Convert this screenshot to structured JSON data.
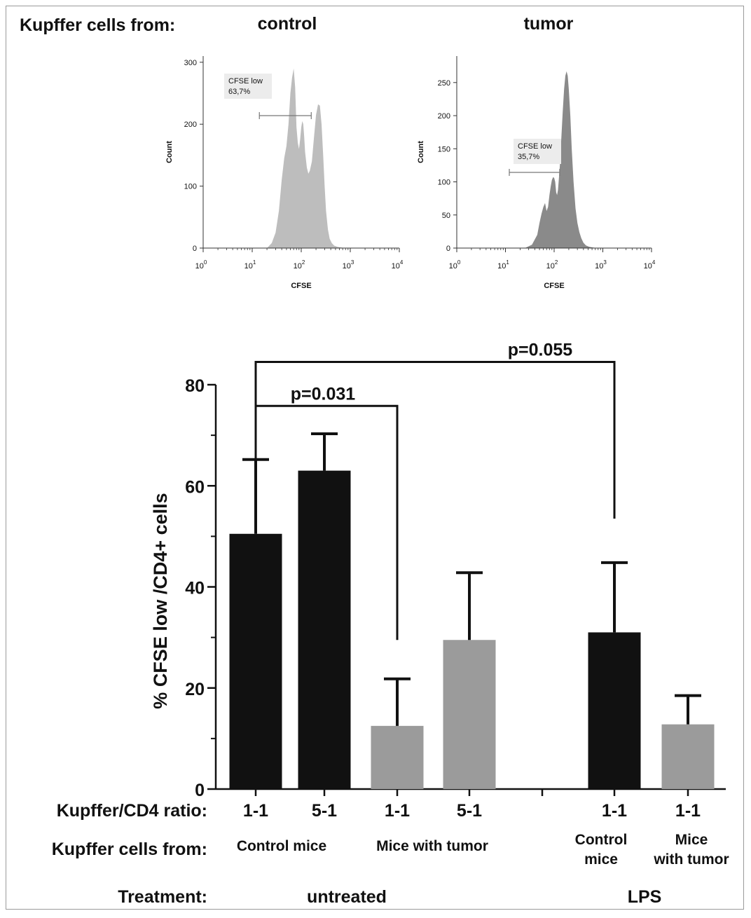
{
  "header": {
    "kupffer_label": "Kupffer cells from:",
    "panel_titles": [
      "control",
      "tumor"
    ]
  },
  "chart_data": [
    {
      "type": "area",
      "title": "control",
      "xlabel": "CFSE",
      "ylabel": "Count",
      "xscale": "log",
      "xlim": [
        1,
        10000
      ],
      "ylim": [
        0,
        310
      ],
      "yticks": [
        0,
        100,
        200,
        300
      ],
      "xticks": [
        {
          "base": "10",
          "exp": "0"
        },
        {
          "base": "10",
          "exp": "1"
        },
        {
          "base": "10",
          "exp": "2"
        },
        {
          "base": "10",
          "exp": "3"
        },
        {
          "base": "10",
          "exp": "4"
        }
      ],
      "gate": {
        "label": "CFSE low",
        "value": "63,7%",
        "x_range": [
          14,
          160
        ]
      },
      "fill_color": "#bdbdbd",
      "x": [
        20,
        25,
        30,
        35,
        40,
        45,
        50,
        55,
        60,
        65,
        70,
        75,
        80,
        85,
        90,
        95,
        100,
        105,
        110,
        115,
        120,
        130,
        140,
        150,
        165,
        180,
        200,
        220,
        240,
        260,
        280,
        300,
        320,
        350,
        380,
        420,
        470,
        550,
        650,
        800
      ],
      "y": [
        0,
        8,
        25,
        60,
        110,
        145,
        165,
        200,
        250,
        275,
        290,
        260,
        195,
        170,
        160,
        175,
        195,
        205,
        200,
        180,
        155,
        130,
        120,
        125,
        140,
        175,
        215,
        232,
        230,
        200,
        150,
        100,
        60,
        30,
        15,
        8,
        4,
        2,
        1,
        0
      ]
    },
    {
      "type": "area",
      "title": "tumor",
      "xlabel": "CFSE",
      "ylabel": "Count",
      "xscale": "log",
      "xlim": [
        1,
        10000
      ],
      "ylim": [
        0,
        290
      ],
      "yticks": [
        0,
        50,
        100,
        150,
        200,
        250
      ],
      "xticks": [
        {
          "base": "10",
          "exp": "0"
        },
        {
          "base": "10",
          "exp": "1"
        },
        {
          "base": "10",
          "exp": "2"
        },
        {
          "base": "10",
          "exp": "3"
        },
        {
          "base": "10",
          "exp": "4"
        }
      ],
      "gate": {
        "label": "CFSE low",
        "value": "35,7%",
        "x_range": [
          12,
          130
        ]
      },
      "fill_color": "#8a8a8a",
      "x": [
        25,
        35,
        45,
        50,
        55,
        60,
        65,
        70,
        75,
        80,
        85,
        90,
        95,
        100,
        105,
        110,
        115,
        120,
        130,
        140,
        150,
        160,
        170,
        180,
        190,
        200,
        215,
        230,
        250,
        275,
        300,
        330,
        360,
        400,
        450,
        520,
        620,
        750
      ],
      "y": [
        0,
        5,
        20,
        38,
        52,
        62,
        68,
        56,
        62,
        80,
        93,
        103,
        107,
        106,
        100,
        84,
        80,
        88,
        120,
        165,
        205,
        240,
        260,
        267,
        260,
        240,
        200,
        150,
        100,
        60,
        38,
        24,
        15,
        8,
        4,
        2,
        1,
        0
      ]
    },
    {
      "type": "bar",
      "ylabel": "% CFSE low /CD4+ cells",
      "ylim": [
        0,
        80
      ],
      "yticks": [
        0,
        20,
        40,
        60,
        80
      ],
      "categories": [
        "1-1",
        "5-1",
        "1-1",
        "5-1",
        "1-1",
        "1-1"
      ],
      "values": [
        50.5,
        63.0,
        12.5,
        29.5,
        31.0,
        12.8
      ],
      "errors_upper": [
        65.2,
        70.3,
        21.8,
        42.8,
        44.8,
        18.5
      ],
      "colors": [
        "#111111",
        "#111111",
        "#9b9b9b",
        "#9b9b9b",
        "#111111",
        "#9b9b9b"
      ],
      "significance": [
        {
          "label": "p=0.031",
          "from_bar": 0,
          "to_bar": 2,
          "level": 75.8,
          "drop_to": 29.5
        },
        {
          "label": "p=0.055",
          "from_bar": 0,
          "to_bar": 4,
          "level": 84.5,
          "drop_to": 53.5
        }
      ],
      "row_labels": {
        "ratio": "Kupffer/CD4 ratio:",
        "source": "Kupffer cells from:",
        "treatment": "Treatment:"
      },
      "source_groups": [
        {
          "lines": [
            "Control mice"
          ]
        },
        {
          "lines": [
            "Mice with tumor"
          ]
        },
        {
          "lines": [
            "Control",
            "mice"
          ]
        },
        {
          "lines": [
            "Mice",
            "with tumor"
          ]
        }
      ],
      "treatment_groups": [
        "untreated",
        "LPS"
      ]
    }
  ]
}
